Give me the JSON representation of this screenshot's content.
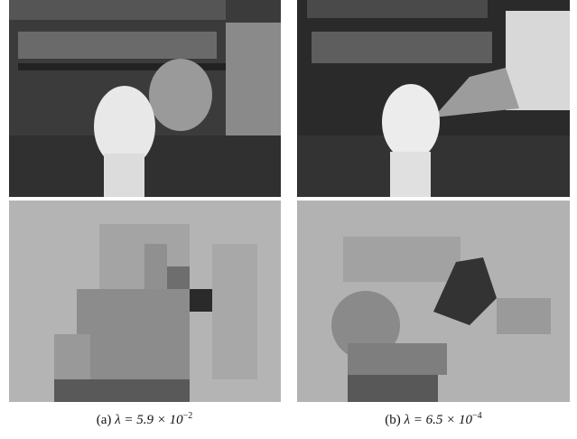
{
  "captions": [
    {
      "label": "(a)",
      "math": "λ = 5.9 × 10",
      "exponent": "−2"
    },
    {
      "label": "(b)",
      "math": "λ = 6.5 × 10",
      "exponent": "−4"
    }
  ]
}
